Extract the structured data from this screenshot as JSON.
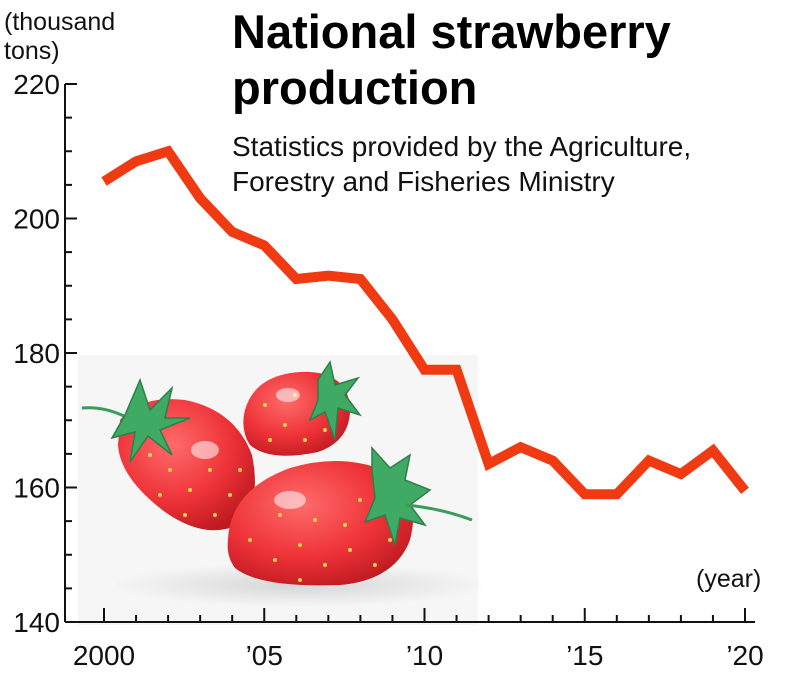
{
  "header": {
    "title_line1": "National strawberry",
    "title_line2": "production",
    "subtitle_line1": "Statistics provided by the Agriculture,",
    "subtitle_line2": "Forestry and Fisheries Ministry"
  },
  "axis": {
    "y_unit_line1": "(thousand",
    "y_unit_line2": "tons)",
    "x_unit": "(year)"
  },
  "chart_data": {
    "type": "line",
    "title": "National strawberry production",
    "subtitle": "Statistics provided by the Agriculture, Forestry and Fisheries Ministry",
    "xlabel": "(year)",
    "ylabel": "(thousand tons)",
    "ylim": [
      140,
      220
    ],
    "xlim": [
      1999,
      2021
    ],
    "y_ticks": [
      140,
      160,
      180,
      200,
      220
    ],
    "x_ticks": [
      {
        "x": 2000,
        "label": "2000"
      },
      {
        "x": 2005,
        "label": "’05"
      },
      {
        "x": 2010,
        "label": "’10"
      },
      {
        "x": 2015,
        "label": "’15"
      },
      {
        "x": 2020,
        "label": "’20"
      }
    ],
    "grid": false,
    "line_color": "#f03a12",
    "x": [
      2000,
      2001,
      2002,
      2003,
      2004,
      2005,
      2006,
      2007,
      2008,
      2009,
      2010,
      2011,
      2012,
      2013,
      2014,
      2015,
      2016,
      2017,
      2018,
      2019,
      2020
    ],
    "values": [
      205.5,
      208.5,
      210,
      203,
      198,
      196,
      191,
      191.5,
      191,
      185,
      177.5,
      177.5,
      163.5,
      166,
      164,
      159,
      159,
      164,
      162,
      165.5,
      159.5
    ]
  },
  "illustration": {
    "subject": "strawberries",
    "icon": "strawberry-icon"
  }
}
